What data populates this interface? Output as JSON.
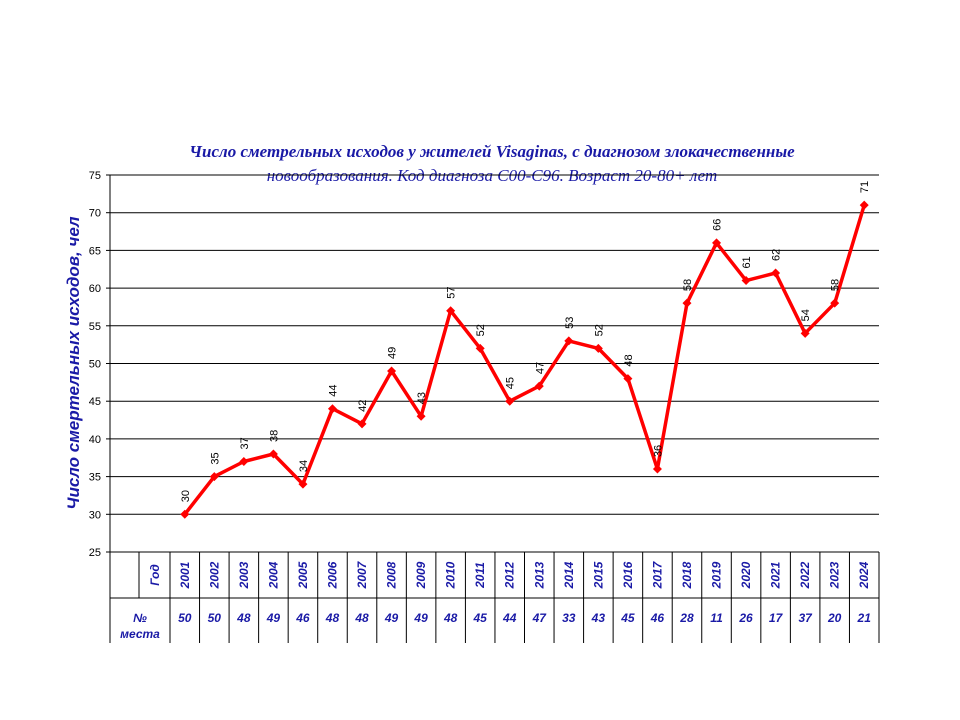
{
  "chart_data": {
    "type": "line",
    "title": "Число сметрельных исходов у жителей  Visaginas, с диагнозом злокачественные",
    "subtitle": "новообразования. Код диагноза С00-С96. Возраст 20-80+ лет",
    "ylabel": "Число смертельных исходов, чел",
    "ylim": [
      25,
      75
    ],
    "yticks": [
      25,
      30,
      35,
      40,
      45,
      50,
      55,
      60,
      65,
      70,
      75
    ],
    "grid": true,
    "color": "#ff0000",
    "x": [
      "2001",
      "2002",
      "2003",
      "2004",
      "2005",
      "2006",
      "2007",
      "2008",
      "2009",
      "2010",
      "2011",
      "2012",
      "2013",
      "2014",
      "2015",
      "2016",
      "2017",
      "2018",
      "2019",
      "2020",
      "2021",
      "2022",
      "2023",
      "2024"
    ],
    "values": [
      30,
      35,
      37,
      38,
      34,
      44,
      42,
      49,
      43,
      57,
      52,
      45,
      47,
      53,
      52,
      48,
      36,
      58,
      66,
      61,
      62,
      54,
      58,
      71
    ],
    "table": {
      "row1_header": "Год",
      "row2_header_line1": "№",
      "row2_header_line2": "места",
      "places": [
        "50",
        "50",
        "48",
        "49",
        "46",
        "48",
        "48",
        "49",
        "49",
        "48",
        "45",
        "44",
        "47",
        "33",
        "43",
        "45",
        "46",
        "28",
        "11",
        "26",
        "17",
        "37",
        "20",
        "21"
      ]
    }
  }
}
